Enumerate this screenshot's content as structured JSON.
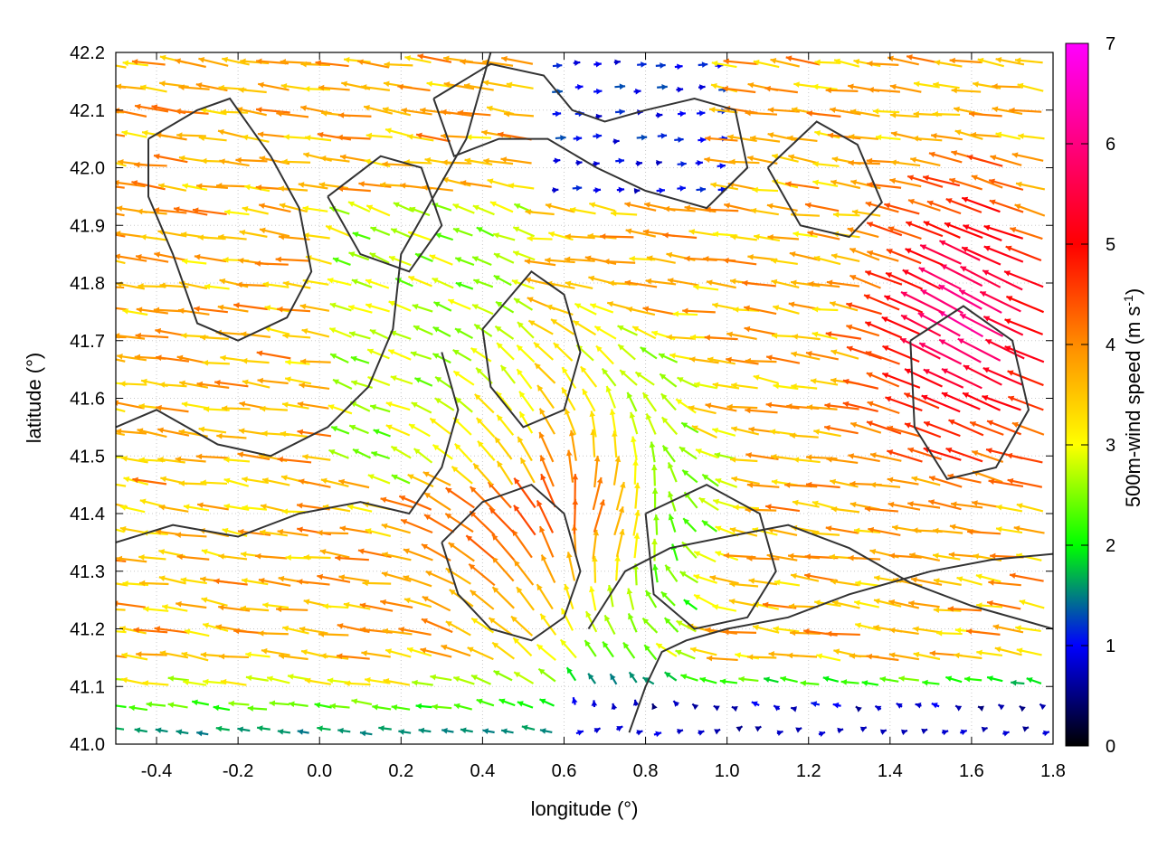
{
  "chart_data": {
    "type": "vector-field",
    "xlabel": "longitude (°)",
    "ylabel": "latitude (°)",
    "colorbar_label": "500m-wind speed (m s",
    "colorbar_label_exp": "-1",
    "colorbar_label_close": ")",
    "xlim": [
      -0.5,
      1.8
    ],
    "ylim": [
      41.0,
      42.2
    ],
    "x_ticks": [
      "-0.4",
      "-0.2",
      "0.0",
      "0.2",
      "0.4",
      "0.6",
      "0.8",
      "1.0",
      "1.2",
      "1.4",
      "1.6",
      "1.8"
    ],
    "x_tick_values": [
      -0.4,
      -0.2,
      0.0,
      0.2,
      0.4,
      0.6,
      0.8,
      1.0,
      1.2,
      1.4,
      1.6,
      1.8
    ],
    "y_ticks": [
      "41.0",
      "41.1",
      "41.2",
      "41.3",
      "41.4",
      "41.5",
      "41.6",
      "41.7",
      "41.8",
      "41.9",
      "42.0",
      "42.1",
      "42.2"
    ],
    "y_tick_values": [
      41.0,
      41.1,
      41.2,
      41.3,
      41.4,
      41.5,
      41.6,
      41.7,
      41.8,
      41.9,
      42.0,
      42.1,
      42.2
    ],
    "colorbar_ticks": [
      "0",
      "1",
      "2",
      "3",
      "4",
      "5",
      "6",
      "7"
    ],
    "colorbar_tick_values": [
      0,
      1,
      2,
      3,
      4,
      5,
      6,
      7
    ],
    "colorbar_range": [
      0,
      7
    ],
    "colorbar_colors": [
      "#000000",
      "#0000ff",
      "#00ff00",
      "#ffff00",
      "#ff8c00",
      "#ff0000",
      "#ff00ff"
    ],
    "grid": "dotted",
    "contour_color": "#333333",
    "contours": [
      [
        [
          -0.42,
          42.05
        ],
        [
          -0.3,
          42.1
        ],
        [
          -0.22,
          42.12
        ],
        [
          -0.12,
          42.02
        ],
        [
          -0.05,
          41.93
        ],
        [
          -0.02,
          41.82
        ],
        [
          -0.08,
          41.74
        ],
        [
          -0.2,
          41.7
        ],
        [
          -0.3,
          41.73
        ],
        [
          -0.36,
          41.85
        ],
        [
          -0.42,
          41.95
        ],
        [
          -0.42,
          42.05
        ]
      ],
      [
        [
          0.02,
          41.95
        ],
        [
          0.15,
          42.02
        ],
        [
          0.25,
          42.0
        ],
        [
          0.3,
          41.9
        ],
        [
          0.22,
          41.82
        ],
        [
          0.1,
          41.85
        ],
        [
          0.02,
          41.95
        ]
      ],
      [
        [
          0.28,
          42.12
        ],
        [
          0.42,
          42.18
        ],
        [
          0.55,
          42.16
        ],
        [
          0.62,
          42.1
        ],
        [
          0.7,
          42.08
        ],
        [
          0.8,
          42.1
        ],
        [
          0.92,
          42.12
        ],
        [
          1.02,
          42.1
        ],
        [
          1.05,
          42.0
        ],
        [
          0.95,
          41.93
        ],
        [
          0.8,
          41.96
        ],
        [
          0.68,
          42.0
        ],
        [
          0.56,
          42.05
        ],
        [
          0.44,
          42.05
        ],
        [
          0.33,
          42.02
        ],
        [
          0.28,
          42.12
        ]
      ],
      [
        [
          0.4,
          41.72
        ],
        [
          0.52,
          41.82
        ],
        [
          0.6,
          41.78
        ],
        [
          0.64,
          41.68
        ],
        [
          0.6,
          41.58
        ],
        [
          0.5,
          41.55
        ],
        [
          0.42,
          41.62
        ],
        [
          0.4,
          41.72
        ]
      ],
      [
        [
          1.1,
          42.0
        ],
        [
          1.22,
          42.08
        ],
        [
          1.32,
          42.04
        ],
        [
          1.38,
          41.94
        ],
        [
          1.3,
          41.88
        ],
        [
          1.18,
          41.9
        ],
        [
          1.1,
          42.0
        ]
      ],
      [
        [
          0.3,
          41.35
        ],
        [
          0.4,
          41.42
        ],
        [
          0.52,
          41.45
        ],
        [
          0.6,
          41.4
        ],
        [
          0.64,
          41.3
        ],
        [
          0.6,
          41.22
        ],
        [
          0.52,
          41.18
        ],
        [
          0.42,
          41.2
        ],
        [
          0.34,
          41.26
        ],
        [
          0.3,
          41.35
        ]
      ],
      [
        [
          0.8,
          41.4
        ],
        [
          0.95,
          41.45
        ],
        [
          1.08,
          41.4
        ],
        [
          1.12,
          41.3
        ],
        [
          1.05,
          41.22
        ],
        [
          0.92,
          41.2
        ],
        [
          0.82,
          41.26
        ],
        [
          0.8,
          41.4
        ]
      ],
      [
        [
          1.45,
          41.7
        ],
        [
          1.58,
          41.76
        ],
        [
          1.7,
          41.7
        ],
        [
          1.74,
          41.58
        ],
        [
          1.66,
          41.48
        ],
        [
          1.54,
          41.46
        ],
        [
          1.46,
          41.55
        ],
        [
          1.45,
          41.7
        ]
      ],
      [
        [
          -0.5,
          41.35
        ],
        [
          -0.36,
          41.38
        ],
        [
          -0.2,
          41.36
        ],
        [
          -0.05,
          41.4
        ],
        [
          0.1,
          41.42
        ],
        [
          0.22,
          41.4
        ],
        [
          0.3,
          41.48
        ],
        [
          0.34,
          41.58
        ],
        [
          0.3,
          41.68
        ]
      ],
      [
        [
          0.66,
          41.2
        ],
        [
          0.75,
          41.3
        ],
        [
          0.86,
          41.34
        ],
        [
          1.0,
          41.36
        ],
        [
          1.15,
          41.38
        ],
        [
          1.3,
          41.34
        ],
        [
          1.45,
          41.28
        ],
        [
          1.6,
          41.24
        ],
        [
          1.8,
          41.2
        ]
      ],
      [
        [
          0.76,
          41.02
        ],
        [
          0.8,
          41.1
        ],
        [
          0.84,
          41.16
        ],
        [
          0.9,
          41.18
        ],
        [
          1.0,
          41.2
        ],
        [
          1.15,
          41.22
        ],
        [
          1.3,
          41.26
        ],
        [
          1.5,
          41.3
        ],
        [
          1.65,
          41.32
        ],
        [
          1.8,
          41.33
        ]
      ],
      [
        [
          -0.5,
          41.55
        ],
        [
          -0.4,
          41.58
        ],
        [
          -0.25,
          41.52
        ],
        [
          -0.12,
          41.5
        ],
        [
          0.02,
          41.55
        ],
        [
          0.12,
          41.62
        ],
        [
          0.18,
          41.72
        ],
        [
          0.2,
          41.85
        ],
        [
          0.28,
          41.95
        ],
        [
          0.36,
          42.05
        ],
        [
          0.4,
          42.15
        ],
        [
          0.42,
          42.2
        ]
      ]
    ],
    "arrow_grid": {
      "nx": 46,
      "ny": 28
    },
    "wind_model": [
      {
        "name": "westerly-flow",
        "u": -3.8,
        "v": 0.6
      },
      {
        "name": "convergence-centre",
        "lon": 0.62,
        "lat": 41.38,
        "strength": 6.5
      },
      {
        "name": "eastern-jet",
        "lon": 1.62,
        "lat": 41.72,
        "strength": 6.8
      },
      {
        "name": "southern-calm",
        "lat_below": 41.15,
        "speed": 1.4
      }
    ]
  }
}
